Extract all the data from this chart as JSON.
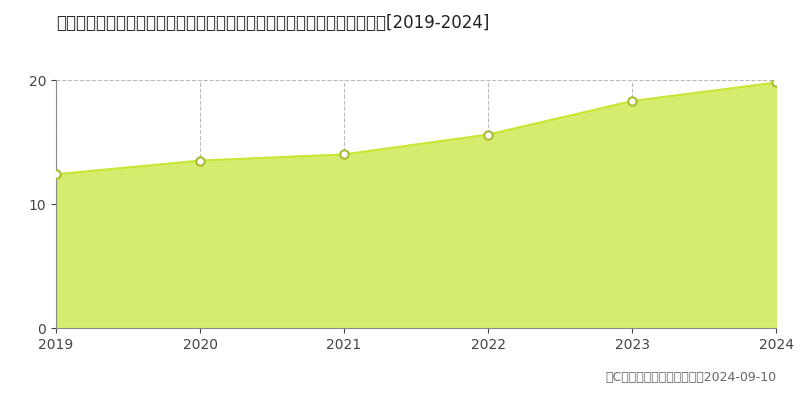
{
  "title": "宮城県黒川郡大和町吉岡まほろば２丁目１７番１３　地価公示　地価推移[2019-2024]",
  "years": [
    2019,
    2020,
    2021,
    2022,
    2023,
    2024
  ],
  "values": [
    12.4,
    13.5,
    14.0,
    15.6,
    18.3,
    19.8
  ],
  "line_color": "#c8e632",
  "fill_color": "#d4ed6e",
  "fill_alpha": 1.0,
  "marker_color": "white",
  "marker_edge_color": "#aabb30",
  "marker_size": 6,
  "ylim": [
    0,
    20
  ],
  "yticks": [
    0,
    10,
    20
  ],
  "grid_color": "#bbbbbb",
  "grid_style": "--",
  "bg_color": "#ffffff",
  "legend_marker_color": "#c8e632",
  "copyright_text": "（C）土地価格ドットコム　2024-09-10",
  "title_fontsize": 12,
  "axis_fontsize": 10,
  "legend_fontsize": 10,
  "copyright_fontsize": 9
}
